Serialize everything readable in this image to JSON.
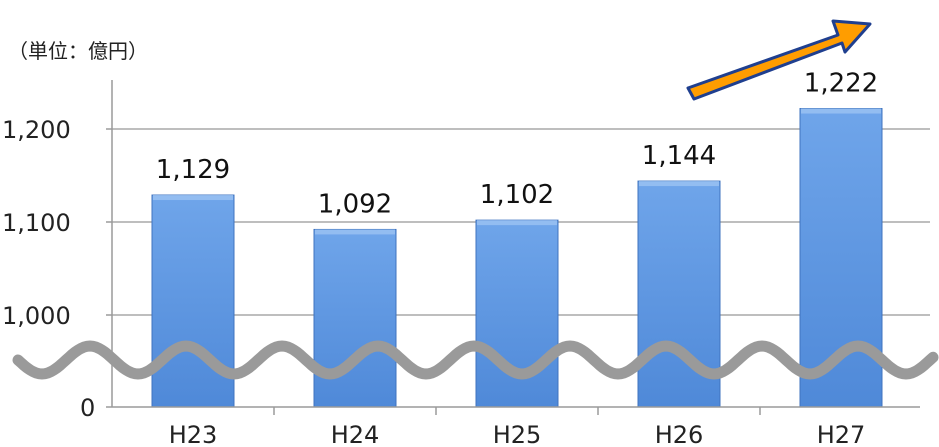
{
  "chart_data": {
    "type": "bar",
    "unit_label": "（単位：億円）",
    "categories": [
      "H23",
      "H24",
      "H25",
      "H26",
      "H27"
    ],
    "values": [
      1129,
      1092,
      1102,
      1144,
      1222
    ],
    "data_labels": [
      "1,129",
      "1,092",
      "1,102",
      "1,144",
      "1,222"
    ],
    "y_ticks": [
      {
        "value": 1200,
        "label": "1,200"
      },
      {
        "value": 1100,
        "label": "1,100"
      },
      {
        "value": 1000,
        "label": "1,000"
      },
      {
        "value": 0,
        "label": "0"
      }
    ],
    "ylim": [
      950,
      1250
    ],
    "axis_break": true,
    "trend_arrow": "up",
    "grid": true,
    "legend": "none",
    "colors": {
      "bar_top": "#6fa5ea",
      "bar_bottom": "#4f89d8",
      "bar_edge": "#3f73bf",
      "grid": "#a8a8a8",
      "axis_break": "#9a9a9a",
      "arrow_fill": "#ff9d00",
      "arrow_edge": "#1f3f8f"
    }
  }
}
